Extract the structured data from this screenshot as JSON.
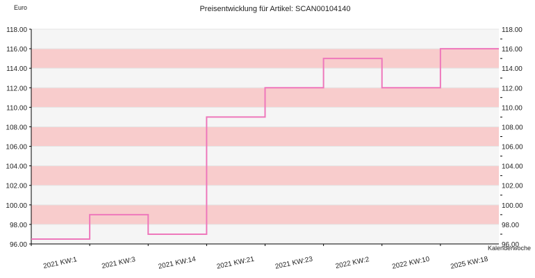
{
  "chart_data": {
    "type": "line",
    "step": "post",
    "title": "Preisentwicklung für Artikel: SCAN00104140",
    "ylabel": "Euro",
    "xlabel": "Kalenderwoche",
    "ylim": [
      96.0,
      118.0
    ],
    "y_tick_step": 2,
    "y_tick_labels": [
      "96.00",
      "98.00",
      "100.00",
      "102.00",
      "104.00",
      "106.00",
      "108.00",
      "110.00",
      "112.00",
      "114.00",
      "116.00",
      "118.00"
    ],
    "categories": [
      "2021 KW:1",
      "2021 KW:3",
      "2021 KW:14",
      "2021 KW:21",
      "2021 KW:23",
      "2022 KW:2",
      "2022 KW:10",
      "2025 KW:18"
    ],
    "series": [
      {
        "values": [
          96.5,
          99.0,
          97.0,
          109.0,
          112.0,
          115.0,
          112.0,
          116.0
        ]
      }
    ],
    "grid": true,
    "colors": {
      "line": "#ee77bb",
      "band_alt": "#f8cccc",
      "band_base": "#f5f5f5",
      "axis": "#000000"
    }
  }
}
